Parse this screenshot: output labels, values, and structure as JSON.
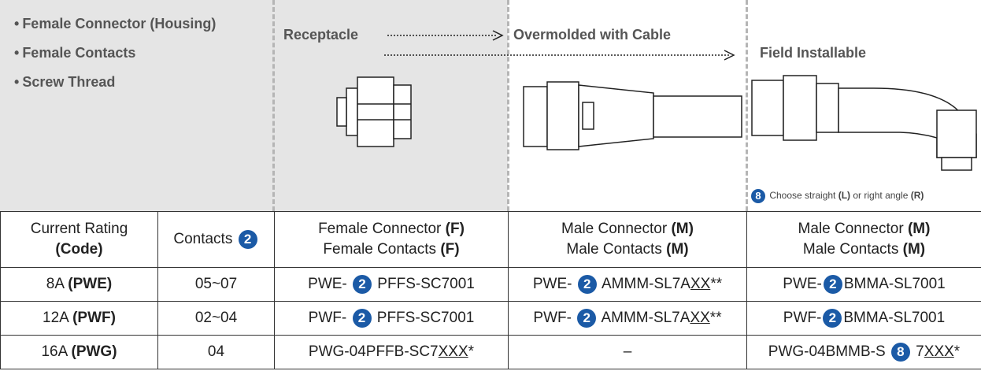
{
  "top": {
    "bullets": [
      "Female Connector (Housing)",
      "Female Contacts",
      "Screw Thread"
    ],
    "receptacle": "Receptacle",
    "overmolded": "Overmolded with Cable",
    "field": "Field Installable",
    "note": [
      {
        "text": "8",
        "style": "badge"
      },
      {
        "text": " Choose straight "
      },
      {
        "text": "(L)",
        "style": "bold"
      },
      {
        "text": " or right angle "
      },
      {
        "text": "(R)",
        "style": "bold"
      }
    ]
  },
  "table": {
    "rows": [
      [
        [
          [
            {
              "text": "Current Rating"
            }
          ],
          [
            {
              "text": "(Code)",
              "style": "bold"
            }
          ]
        ],
        [
          [
            {
              "text": "Contacts "
            },
            {
              "text": "2",
              "style": "badge"
            }
          ]
        ],
        [
          [
            {
              "text": "Female Connector "
            },
            {
              "text": "(F)",
              "style": "bold"
            }
          ],
          [
            {
              "text": "Female Contacts "
            },
            {
              "text": "(F)",
              "style": "bold"
            }
          ]
        ],
        [
          [
            {
              "text": "Male Connector "
            },
            {
              "text": "(M)",
              "style": "bold"
            }
          ],
          [
            {
              "text": "Male Contacts "
            },
            {
              "text": "(M)",
              "style": "bold"
            }
          ]
        ],
        [
          [
            {
              "text": "Male Connector "
            },
            {
              "text": "(M)",
              "style": "bold"
            }
          ],
          [
            {
              "text": "Male Contacts "
            },
            {
              "text": "(M)",
              "style": "bold"
            }
          ]
        ]
      ],
      [
        [
          [
            {
              "text": "8A "
            },
            {
              "text": "(PWE)",
              "style": "bold"
            }
          ]
        ],
        [
          [
            {
              "text": "05~07"
            }
          ]
        ],
        [
          [
            {
              "text": "PWE- "
            },
            {
              "text": "2",
              "style": "badge"
            },
            {
              "text": " PFFS-SC7001"
            }
          ]
        ],
        [
          [
            {
              "text": "PWE- "
            },
            {
              "text": "2",
              "style": "badge"
            },
            {
              "text": " AMMM-SL7A"
            },
            {
              "text": "XX",
              "style": "underline"
            },
            {
              "text": "**"
            }
          ]
        ],
        [
          [
            {
              "text": "PWE-"
            },
            {
              "text": "2",
              "style": "badge"
            },
            {
              "text": "BMMA-SL7001"
            }
          ]
        ]
      ],
      [
        [
          [
            {
              "text": "12A "
            },
            {
              "text": "(PWF)",
              "style": "bold"
            }
          ]
        ],
        [
          [
            {
              "text": "02~04"
            }
          ]
        ],
        [
          [
            {
              "text": "PWF- "
            },
            {
              "text": "2",
              "style": "badge"
            },
            {
              "text": " PFFS-SC7001"
            }
          ]
        ],
        [
          [
            {
              "text": "PWF- "
            },
            {
              "text": "2",
              "style": "badge"
            },
            {
              "text": " AMMM-SL7A"
            },
            {
              "text": "XX",
              "style": "underline"
            },
            {
              "text": "**"
            }
          ]
        ],
        [
          [
            {
              "text": "PWF-"
            },
            {
              "text": "2",
              "style": "badge"
            },
            {
              "text": "BMMA-SL7001"
            }
          ]
        ]
      ],
      [
        [
          [
            {
              "text": "16A "
            },
            {
              "text": "(PWG)",
              "style": "bold"
            }
          ]
        ],
        [
          [
            {
              "text": "04"
            }
          ]
        ],
        [
          [
            {
              "text": "PWG-04PFFB-SC7"
            },
            {
              "text": "XXX",
              "style": "underline"
            },
            {
              "text": "*"
            }
          ]
        ],
        [
          [
            {
              "text": "–"
            }
          ]
        ],
        [
          [
            {
              "text": "PWG-04BMMB-S "
            },
            {
              "text": "8",
              "style": "badge"
            },
            {
              "text": " 7"
            },
            {
              "text": "XXX",
              "style": "underline"
            },
            {
              "text": "*"
            }
          ]
        ]
      ]
    ]
  }
}
